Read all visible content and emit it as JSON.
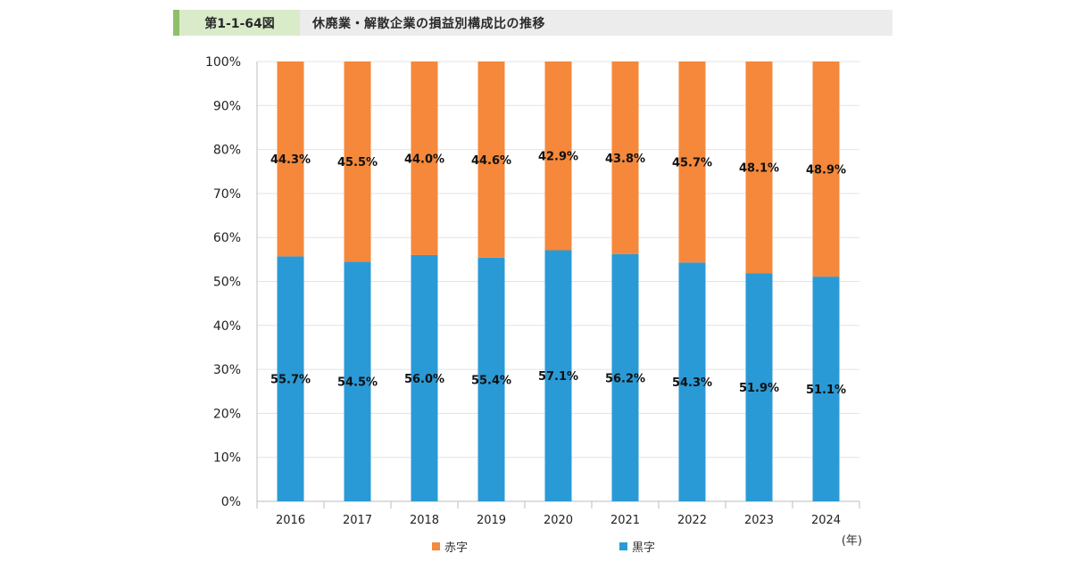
{
  "header": {
    "figure_number": "第1-1-64図",
    "title": "休廃業・解散企業の損益別構成比の推移"
  },
  "colors": {
    "header_accent": "#8fbf6a",
    "header_label_bg": "#d9ebc9",
    "header_bg": "#ececec",
    "loss": "#f5883b",
    "profit": "#2a9ad6"
  },
  "chart_data": {
    "type": "bar",
    "stacked": true,
    "percent": true,
    "categories": [
      "2016",
      "2017",
      "2018",
      "2019",
      "2020",
      "2021",
      "2022",
      "2023",
      "2024"
    ],
    "series": [
      {
        "name": "黒字",
        "color": "#2a9ad6",
        "values": [
          55.7,
          54.5,
          56.0,
          55.4,
          57.1,
          56.2,
          54.3,
          51.9,
          51.1
        ],
        "labels": [
          "55.7%",
          "54.5%",
          "56.0%",
          "55.4%",
          "57.1%",
          "56.2%",
          "54.3%",
          "51.9%",
          "51.1%"
        ]
      },
      {
        "name": "赤字",
        "color": "#f5883b",
        "values": [
          44.3,
          45.5,
          44.0,
          44.6,
          42.9,
          43.8,
          45.7,
          48.1,
          48.9
        ],
        "labels": [
          "44.3%",
          "45.5%",
          "44.0%",
          "44.6%",
          "42.9%",
          "43.8%",
          "45.7%",
          "48.1%",
          "48.9%"
        ]
      }
    ],
    "ylim": [
      0,
      100
    ],
    "yticks": [
      "0%",
      "10%",
      "20%",
      "30%",
      "40%",
      "50%",
      "60%",
      "70%",
      "80%",
      "90%",
      "100%"
    ],
    "x_unit_label": "(年)",
    "grid": true,
    "legend_position": "bottom",
    "legend": [
      "赤字",
      "黒字"
    ]
  }
}
